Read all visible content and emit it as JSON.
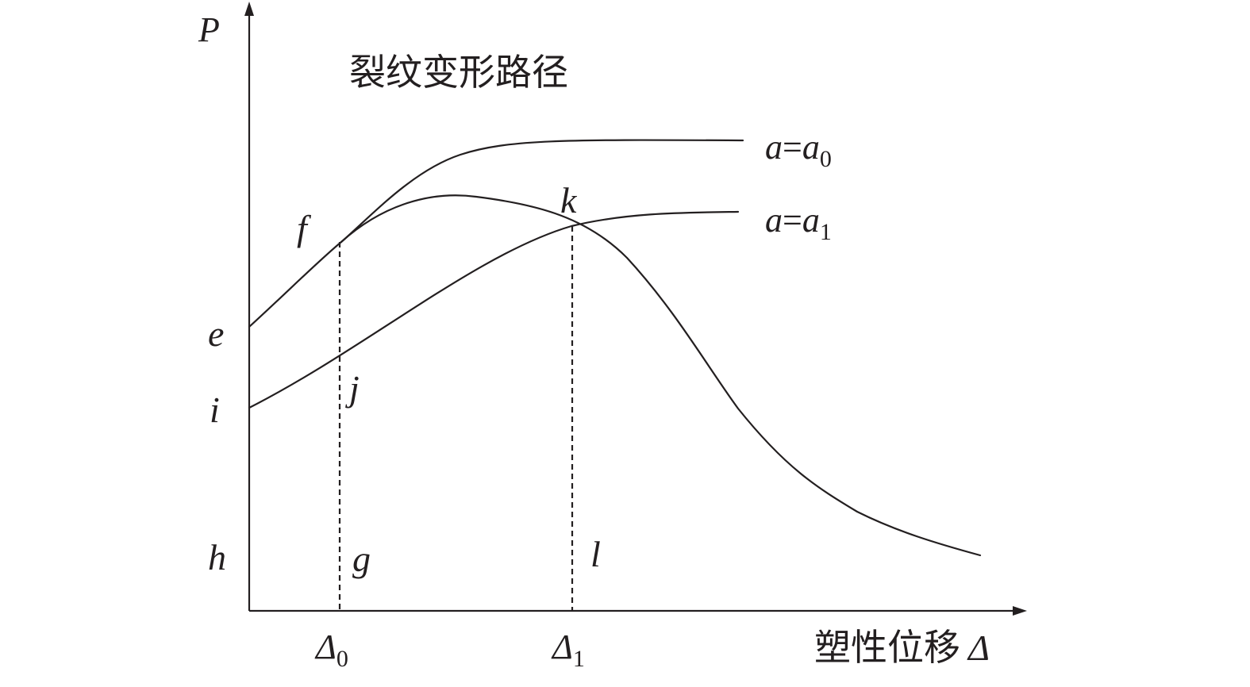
{
  "diagram": {
    "title": "裂纹变形路径",
    "y_axis_label": "P",
    "x_axis_label_text": "塑性位移",
    "x_axis_label_symbol": "Δ",
    "curves": [
      {
        "label_var": "a",
        "label_eq": "=",
        "label_val": "a",
        "label_sub": "0"
      },
      {
        "label_var": "a",
        "label_eq": "=",
        "label_val": "a",
        "label_sub": "1"
      }
    ],
    "points": {
      "e": "e",
      "f": "f",
      "g": "g",
      "h": "h",
      "i": "i",
      "j": "j",
      "k": "k",
      "l": "l"
    },
    "x_ticks": [
      {
        "symbol": "Δ",
        "sub": "0"
      },
      {
        "symbol": "Δ",
        "sub": "1"
      }
    ],
    "colors": {
      "line": "#231f20",
      "background": "#ffffff"
    }
  }
}
